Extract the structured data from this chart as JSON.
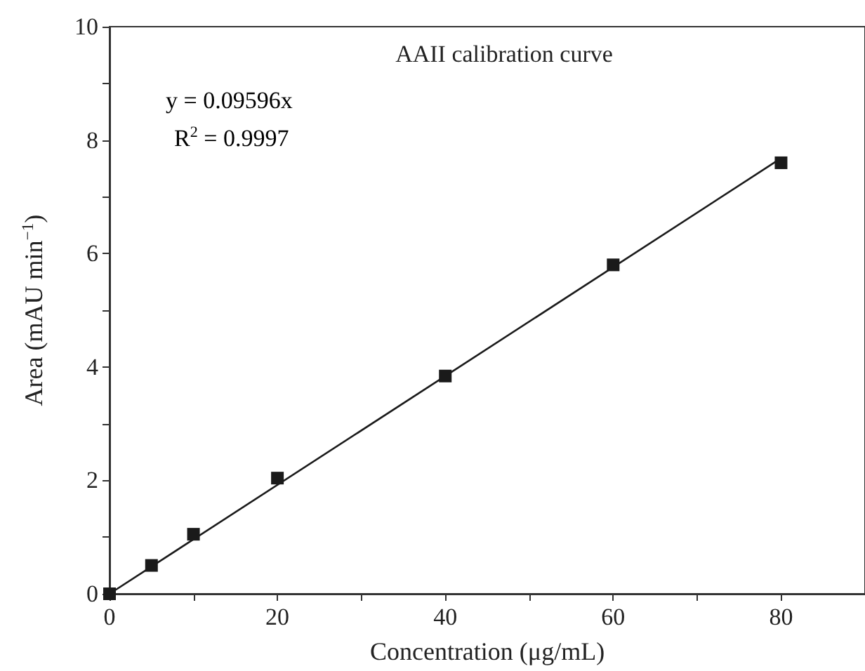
{
  "chart_data": {
    "type": "scatter",
    "title": "AAII calibration curve",
    "xlabel": "Concentration (μg/mL)",
    "ylabel": "Area (mAU min$^{−1}$)",
    "annotations": [
      "y = 0.09596x",
      "R$^{2}$ = 0.9997"
    ],
    "series": [
      {
        "color": "#1a1a1a",
        "marker": "square",
        "x": [
          0,
          5,
          10,
          20,
          40,
          60,
          80
        ],
        "values": [
          0,
          0.5,
          1.05,
          2.04,
          3.84,
          5.8,
          7.6
        ]
      },
      {
        "type": "line",
        "color": "#1a1a1a",
        "marker": "none",
        "line_style": "solid",
        "x": [
          0,
          80
        ],
        "values": [
          0,
          7.68
        ]
      }
    ],
    "xlim": [
      0,
      90
    ],
    "xticks": [
      0,
      {
        "value": 10,
        "label": null
      },
      20,
      {
        "value": 30,
        "label": null
      },
      40,
      {
        "value": 50,
        "label": null
      },
      60,
      {
        "value": 70,
        "label": null
      },
      80,
      {
        "value": 90,
        "label": null
      }
    ],
    "ylim": [
      0,
      10
    ],
    "yticks": [
      0,
      {
        "value": 1,
        "label": null
      },
      2,
      {
        "value": 3,
        "label": null
      },
      4,
      {
        "value": 5,
        "label": null
      },
      6,
      {
        "value": 7,
        "label": null
      },
      8,
      {
        "value": 9,
        "label": null
      },
      10
    ],
    "grid": false
  }
}
